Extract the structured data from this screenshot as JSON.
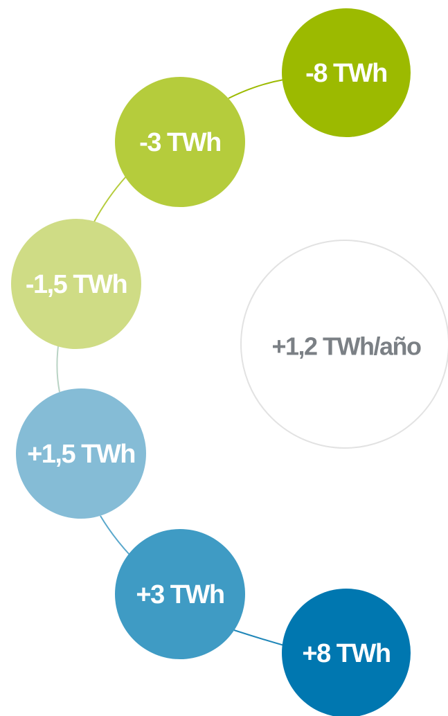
{
  "nodes": [
    {
      "label": "-8 TWh"
    },
    {
      "label": "-3 TWh"
    },
    {
      "label": "-1,5 TWh"
    },
    {
      "label": "+1,5 TWh"
    },
    {
      "label": "+3 TWh"
    },
    {
      "label": "+8 TWh"
    }
  ],
  "center": {
    "label": "+1,2 TWh/año"
  }
}
